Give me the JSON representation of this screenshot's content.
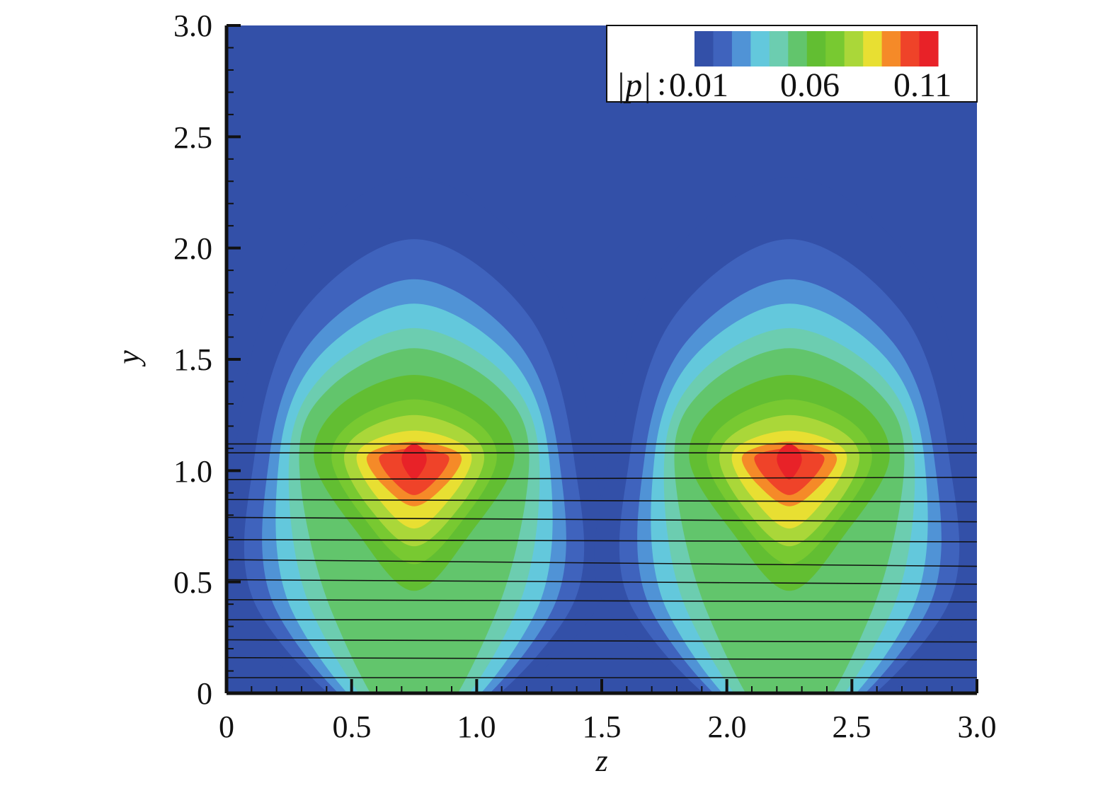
{
  "chart_data": {
    "type": "heatmap",
    "xlabel": "z",
    "ylabel": "y",
    "xlim": [
      0,
      3.0
    ],
    "ylim": [
      0,
      3.0
    ],
    "x_ticks": [
      "0",
      "0.5",
      "1.0",
      "1.5",
      "2.0",
      "2.5",
      "3.0"
    ],
    "y_ticks": [
      "0",
      "0.5",
      "1.0",
      "1.5",
      "2.0",
      "2.5",
      "3.0"
    ],
    "legend": {
      "placement": "top-right",
      "symbol_prefix": "|p|",
      "separator": ":",
      "labels": [
        "0.01",
        "0.06",
        "0.11"
      ],
      "level_count": 13
    },
    "field": "|p|",
    "peaks": [
      {
        "z": 0.75,
        "y": 1.05,
        "value": 0.12
      },
      {
        "z": 2.25,
        "y": 1.05,
        "value": 0.12
      }
    ],
    "colors": [
      "#3350a8",
      "#3f63bd",
      "#5093d6",
      "#63c8dc",
      "#6ccdb0",
      "#62c56c",
      "#62be32",
      "#78c931",
      "#aad739",
      "#e8df32",
      "#f58a28",
      "#ef4329",
      "#e82228"
    ],
    "streamlines": {
      "count": 13,
      "y_left": [
        0.07,
        0.16,
        0.24,
        0.33,
        0.42,
        0.51,
        0.6,
        0.69,
        0.79,
        0.87,
        0.96,
        1.08,
        1.12
      ],
      "y_right": [
        0.07,
        0.15,
        0.23,
        0.33,
        0.41,
        0.49,
        0.57,
        0.68,
        0.77,
        0.86,
        0.97,
        1.08,
        1.12
      ]
    }
  }
}
